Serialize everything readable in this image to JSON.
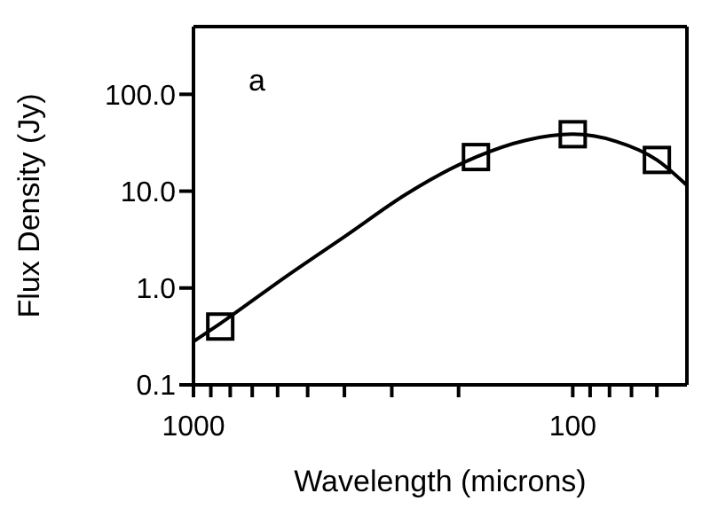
{
  "chart_data": {
    "type": "scatter",
    "xlabel": "Wavelength (microns)",
    "ylabel": "Flux Density (Jy)",
    "annotations": [
      "a"
    ],
    "log": "xy",
    "xlim": [
      1000,
      50
    ],
    "ylim": [
      0.1,
      500
    ],
    "xticks": [
      1000,
      {
        "value": 900,
        "label": null
      },
      {
        "value": 800,
        "label": null
      },
      {
        "value": 700,
        "label": null
      },
      {
        "value": 600,
        "label": null
      },
      {
        "value": 500,
        "label": null
      },
      {
        "value": 400,
        "label": null
      },
      {
        "value": 300,
        "label": null
      },
      {
        "value": 200,
        "label": null
      },
      100,
      {
        "value": 90,
        "label": null
      },
      {
        "value": 80,
        "label": null
      },
      {
        "value": 70,
        "label": null
      },
      {
        "value": 60,
        "label": null
      }
    ],
    "yticks": [
      0.1,
      {
        "value": 1,
        "label": "1.0"
      },
      {
        "value": 10,
        "label": "10.0"
      },
      {
        "value": 100,
        "label": "100.0"
      }
    ],
    "series": [
      {
        "type": "line",
        "color": "#000000",
        "marker": "none",
        "line_style": "solid",
        "x": [
          1000,
          850,
          569,
          395,
          275,
          180,
          133,
          100,
          77,
          60,
          50
        ],
        "values": [
          0.28,
          0.43,
          1.32,
          3.5,
          9.3,
          22.5,
          33.5,
          38.7,
          32.7,
          21,
          11.5
        ]
      },
      {
        "color": "#000000",
        "marker": "square",
        "x": [
          850,
          180,
          100,
          60
        ],
        "values": [
          0.4,
          22.5,
          38.7,
          21
        ]
      }
    ]
  }
}
